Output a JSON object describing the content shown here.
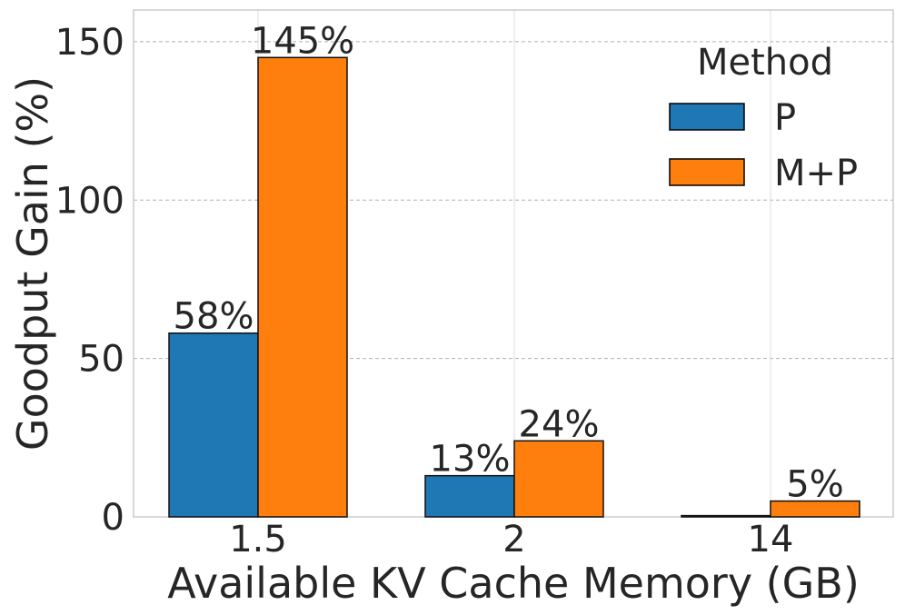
{
  "chart_data": {
    "type": "bar",
    "title": "",
    "xlabel": "Available KV Cache Memory (GB)",
    "ylabel": "Goodput Gain (%)",
    "categories": [
      "1.5",
      "2",
      "14"
    ],
    "ylim": [
      0,
      160
    ],
    "yticks": [
      0,
      50,
      100,
      150
    ],
    "grid": true,
    "legend": {
      "title": "Method",
      "placement": "top-right"
    },
    "series": [
      {
        "name": "P",
        "color": "#1f77b4",
        "values": [
          58,
          13,
          0.4
        ],
        "labels": [
          "58%",
          "13%",
          ""
        ]
      },
      {
        "name": "M+P",
        "color": "#ff7f0e",
        "values": [
          145,
          24,
          5
        ],
        "labels": [
          "145%",
          "24%",
          "5%"
        ]
      }
    ]
  }
}
